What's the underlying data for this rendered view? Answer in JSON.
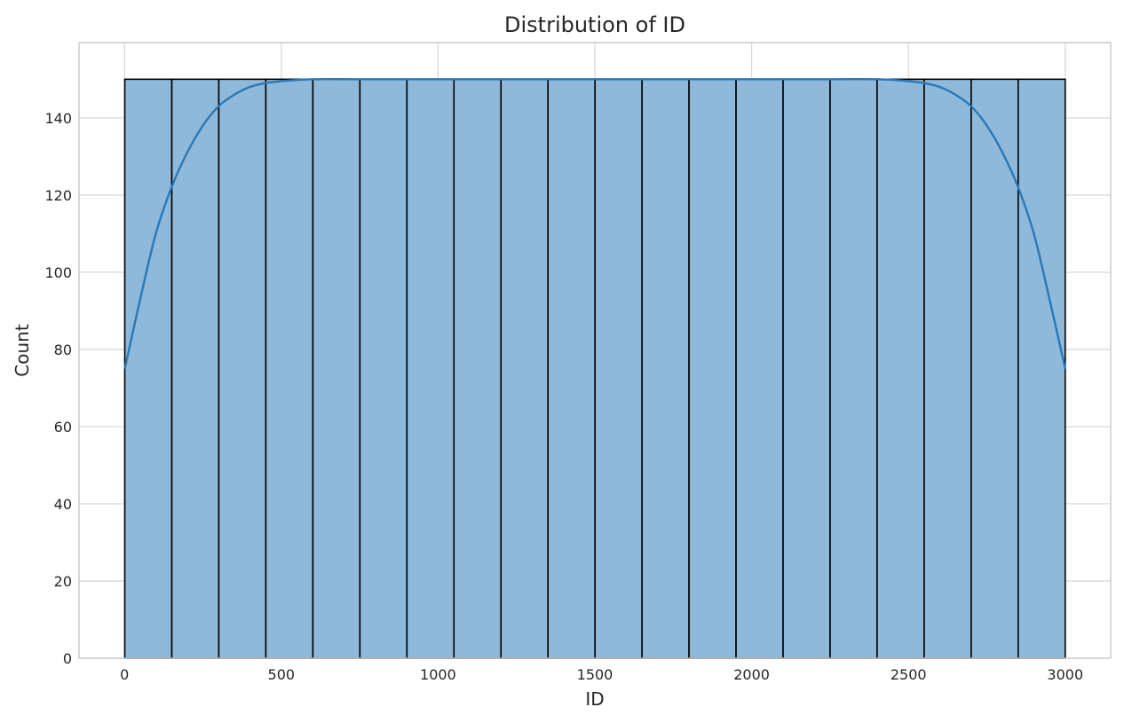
{
  "chart_data": {
    "type": "bar",
    "subtype": "histogram",
    "title": "Distribution of ID",
    "xlabel": "ID",
    "ylabel": "Count",
    "xlim": [
      -145,
      3145
    ],
    "ylim": [
      0,
      159.5
    ],
    "xticks": [
      0,
      500,
      1000,
      1500,
      2000,
      2500,
      3000
    ],
    "yticks": [
      0,
      20,
      40,
      60,
      80,
      100,
      120,
      140
    ],
    "bin_edges": [
      1,
      150.95,
      300.9,
      450.85,
      600.8,
      750.75,
      900.7,
      1050.65,
      1200.6,
      1350.55,
      1500.5,
      1650.45,
      1800.4,
      1950.35,
      2100.3,
      2250.25,
      2400.2,
      2550.15,
      2700.1,
      2850.05,
      3000
    ],
    "counts": [
      150,
      150,
      150,
      150,
      150,
      150,
      150,
      150,
      150,
      150,
      150,
      150,
      150,
      150,
      150,
      150,
      150,
      150,
      150,
      150
    ],
    "kde": {
      "x": [
        1,
        50,
        100,
        150,
        200,
        250,
        300,
        350,
        400,
        450,
        500,
        600,
        800,
        1500,
        2200,
        2400,
        2500,
        2550,
        2600,
        2650,
        2700,
        2750,
        2800,
        2850,
        2900,
        2950,
        3000
      ],
      "y": [
        75,
        93,
        110,
        122,
        131,
        138,
        143,
        146,
        148,
        149,
        149.5,
        150,
        150,
        150,
        150,
        150,
        149.5,
        149,
        148,
        146,
        143,
        138,
        131,
        122,
        110,
        93,
        75
      ]
    },
    "colors": {
      "bar_fill": "#8fb9da",
      "bar_edge": "#000000",
      "kde_line": "#2a78b7",
      "grid": "#d5d5d5",
      "axes_edge": "#cccccc"
    },
    "grid": true,
    "legend": "none"
  }
}
